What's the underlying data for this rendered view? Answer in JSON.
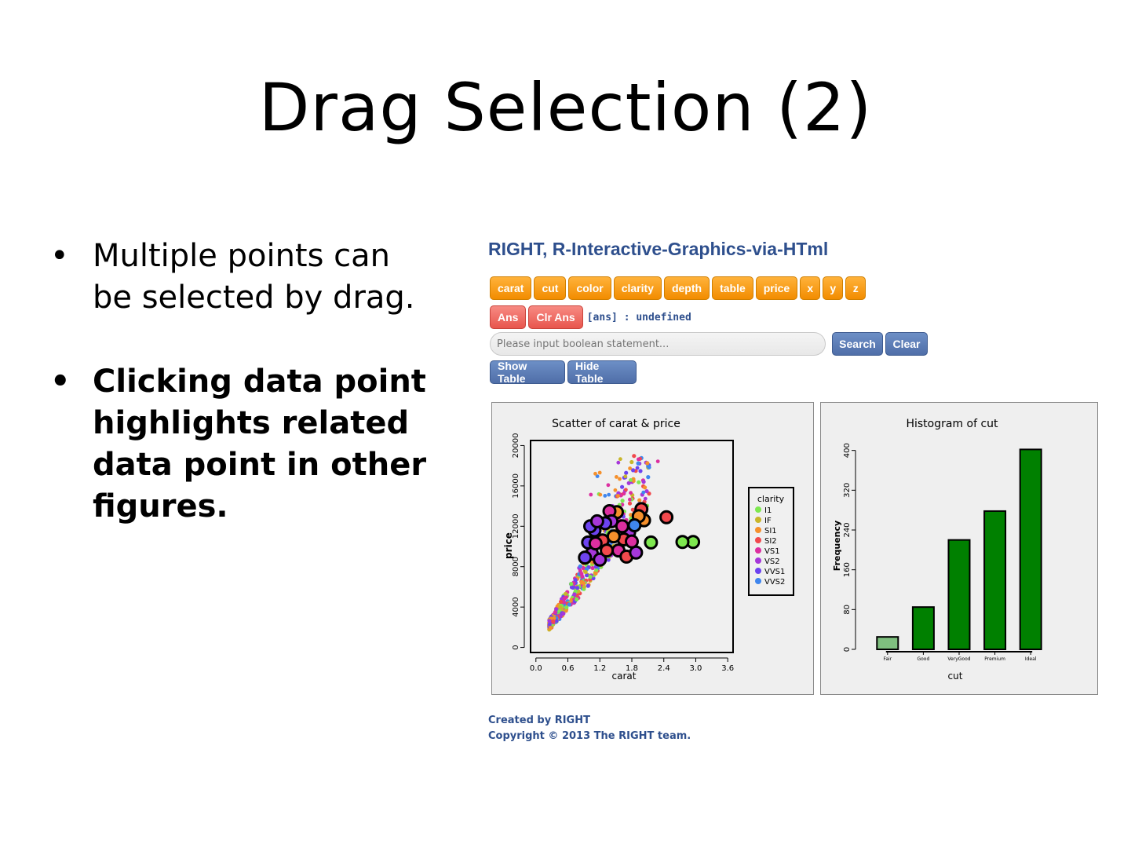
{
  "slide": {
    "title": "Drag Selection (2)",
    "bullets": [
      {
        "text": "Multiple points can be selected by drag.",
        "bold": false
      },
      {
        "text": "Clicking data point highlights related data point in other figures.",
        "bold": true
      }
    ]
  },
  "app": {
    "title": "RIGHT, R-Interactive-Graphics-via-HTml",
    "variable_buttons": [
      "carat",
      "cut",
      "color",
      "clarity",
      "depth",
      "table",
      "price",
      "x",
      "y",
      "z"
    ],
    "ans_button": "Ans",
    "clr_ans_button": "Clr Ans",
    "ans_status": "[ans] : undefined",
    "search": {
      "placeholder": "Please input boolean statement...",
      "value": ""
    },
    "search_button": "Search",
    "clear_button": "Clear",
    "show_table_button": "Show Table",
    "hide_table_button": "Hide Table",
    "footer": {
      "line1": "Created by RIGHT",
      "line2": "Copyright © 2013 The RIGHT team."
    },
    "colors": {
      "orange": "#f59a1b",
      "red": "#ef6b62",
      "blue": "#5a79b3",
      "title": "#2e4f8d",
      "bar": "#008000",
      "bar_selected": "#7fbf7f"
    }
  },
  "chart_data": [
    {
      "type": "scatter",
      "title": "Scatter of carat & price",
      "xlabel": "carat",
      "ylabel": "price",
      "xlim": [
        -0.1,
        3.7
      ],
      "ylim": [
        -500,
        20500
      ],
      "xticks": [
        "0.0",
        "0.6",
        "1.2",
        "1.8",
        "2.4",
        "3.0",
        "3.6"
      ],
      "yticks": [
        "0",
        "4000",
        "8000",
        "12000",
        "16000",
        "20000"
      ],
      "legend": {
        "title": "clarity",
        "position": "right",
        "entries": [
          {
            "name": "I1",
            "color": "#7ee84f"
          },
          {
            "name": "IF",
            "color": "#c8b62a"
          },
          {
            "name": "SI1",
            "color": "#f5902c"
          },
          {
            "name": "SI2",
            "color": "#f1494d"
          },
          {
            "name": "VS1",
            "color": "#dc2fa0"
          },
          {
            "name": "VS2",
            "color": "#a637d9"
          },
          {
            "name": "VVS1",
            "color": "#6d43f0"
          },
          {
            "name": "VVS2",
            "color": "#3f86ee"
          }
        ]
      },
      "highlighted_points": [
        {
          "x": 2.95,
          "y": 10450,
          "c": "I1"
        },
        {
          "x": 2.75,
          "y": 10450,
          "c": "I1"
        },
        {
          "x": 2.45,
          "y": 12900,
          "c": "SI2"
        },
        {
          "x": 2.16,
          "y": 10400,
          "c": "I1"
        },
        {
          "x": 1.98,
          "y": 13700,
          "c": "SI2"
        },
        {
          "x": 2.03,
          "y": 12600,
          "c": "SI1"
        },
        {
          "x": 1.93,
          "y": 13000,
          "c": "SI1"
        },
        {
          "x": 1.75,
          "y": 11400,
          "c": "VS2"
        },
        {
          "x": 1.52,
          "y": 13400,
          "c": "SI1"
        },
        {
          "x": 1.38,
          "y": 13500,
          "c": "VS1"
        },
        {
          "x": 1.42,
          "y": 12500,
          "c": "VS2"
        },
        {
          "x": 1.3,
          "y": 12300,
          "c": "VVS1"
        },
        {
          "x": 1.1,
          "y": 11600,
          "c": "VVS1"
        },
        {
          "x": 0.98,
          "y": 10400,
          "c": "VVS1"
        },
        {
          "x": 1.05,
          "y": 9300,
          "c": "VS2"
        },
        {
          "x": 0.92,
          "y": 8900,
          "c": "VVS1"
        },
        {
          "x": 1.2,
          "y": 8700,
          "c": "VS2"
        },
        {
          "x": 1.55,
          "y": 9600,
          "c": "VS1"
        },
        {
          "x": 1.7,
          "y": 9000,
          "c": "SI2"
        },
        {
          "x": 1.88,
          "y": 9400,
          "c": "VS2"
        },
        {
          "x": 1.65,
          "y": 10700,
          "c": "SI2"
        },
        {
          "x": 1.25,
          "y": 10600,
          "c": "SI2"
        },
        {
          "x": 1.46,
          "y": 11000,
          "c": "SI1"
        },
        {
          "x": 1.12,
          "y": 10300,
          "c": "VS1"
        },
        {
          "x": 1.62,
          "y": 12000,
          "c": "VS1"
        },
        {
          "x": 1.85,
          "y": 12100,
          "c": "VVS2"
        },
        {
          "x": 1.02,
          "y": 12000,
          "c": "VVS1"
        },
        {
          "x": 1.33,
          "y": 9600,
          "c": "SI2"
        },
        {
          "x": 1.8,
          "y": 10500,
          "c": "VS1"
        },
        {
          "x": 1.15,
          "y": 12500,
          "c": "VS2"
        }
      ]
    },
    {
      "type": "bar",
      "title": "Histogram of cut",
      "xlabel": "cut",
      "ylabel": "Frequency",
      "categories": [
        "Fair",
        "Good",
        "VeryGood",
        "Premium",
        "Ideal"
      ],
      "values": [
        25,
        85,
        220,
        278,
        402
      ],
      "highlighted_category": "Fair",
      "ylim": [
        0,
        420
      ],
      "yticks": [
        "0",
        "80",
        "160",
        "240",
        "320",
        "400"
      ]
    }
  ]
}
